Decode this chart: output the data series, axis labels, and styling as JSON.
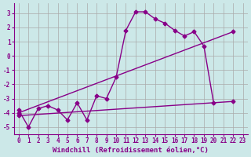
{
  "background_color": "#cce8e8",
  "grid_color": "#aaaaaa",
  "line_color": "#880088",
  "marker": "D",
  "markersize": 2.5,
  "linewidth": 1.0,
  "xlabel": "Windchill (Refroidissement éolien,°C)",
  "xlabel_fontsize": 6.5,
  "tick_fontsize": 5.5,
  "xlim": [
    -0.5,
    23.5
  ],
  "ylim": [
    -5.5,
    3.7
  ],
  "yticks": [
    -5,
    -4,
    -3,
    -2,
    -1,
    0,
    1,
    2,
    3
  ],
  "xticks": [
    0,
    1,
    2,
    3,
    4,
    5,
    6,
    7,
    8,
    9,
    10,
    11,
    12,
    13,
    14,
    15,
    16,
    17,
    18,
    19,
    20,
    21,
    22,
    23
  ],
  "series": [
    {
      "x": [
        0,
        1,
        2,
        3,
        4,
        5,
        6,
        7,
        8,
        9,
        10,
        11,
        12,
        13,
        14,
        15,
        16,
        17,
        18,
        19,
        20,
        21,
        22
      ],
      "y": [
        -3.8,
        -5.0,
        -3.7,
        -3.5,
        -3.8,
        -4.5,
        -3.3,
        -4.5,
        -2.8,
        -3.0,
        -1.5,
        1.8,
        3.1,
        3.1,
        2.6,
        2.3,
        1.8,
        1.4,
        1.7,
        0.7,
        -3.3,
        null,
        null
      ]
    },
    {
      "x": [
        0,
        22
      ],
      "y": [
        -4.0,
        1.7
      ]
    },
    {
      "x": [
        0,
        22
      ],
      "y": [
        -4.2,
        -3.2
      ]
    }
  ]
}
